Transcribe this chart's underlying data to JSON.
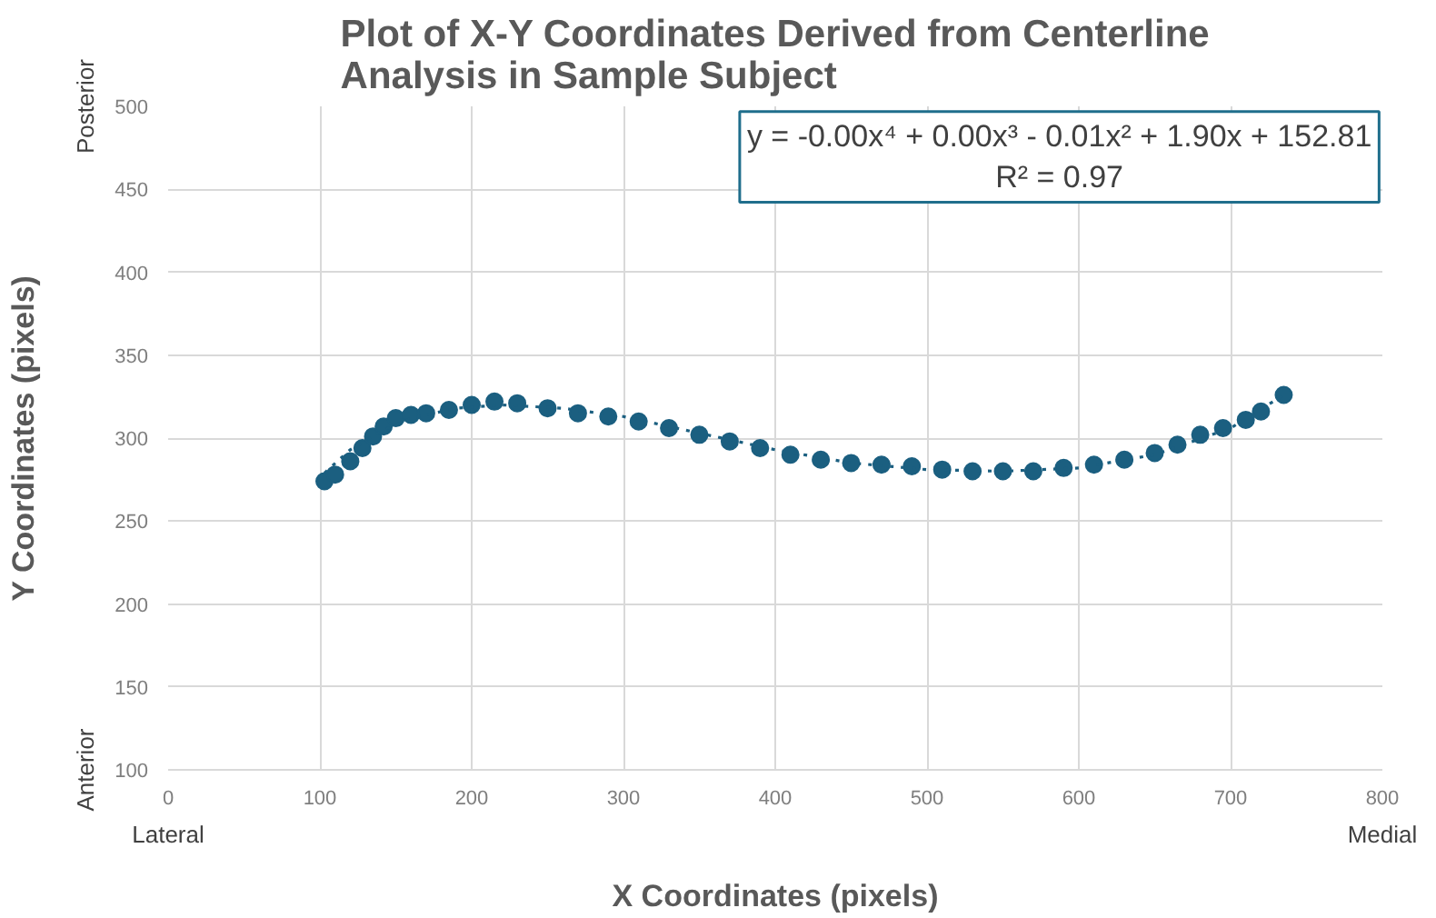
{
  "chart_data": {
    "type": "scatter",
    "title": "Plot of X-Y Coordinates Derived from Centerline Analysis in Sample Subject",
    "xlabel": "X Coordinates (pixels)",
    "ylabel": "Y Coordinates (pixels)",
    "xlim": [
      0,
      800
    ],
    "ylim": [
      100,
      500
    ],
    "xticks": [
      0,
      100,
      200,
      300,
      400,
      500,
      600,
      700,
      800
    ],
    "yticks": [
      100,
      150,
      200,
      250,
      300,
      350,
      400,
      450,
      500
    ],
    "grid": true,
    "marker": "circle",
    "annotations": [
      "Posterior",
      "Anterior",
      "Lateral",
      "Medial",
      "y = -0.00x⁴ + 0.00x³ - 0.01x² + 1.90x + 152.81",
      "R² = 0.97"
    ],
    "series": [
      {
        "color": "#1b5f80",
        "x": [
          103,
          110,
          120,
          128,
          135,
          142,
          150,
          160,
          170,
          185,
          200,
          215,
          230,
          250,
          270,
          290,
          310,
          330,
          350,
          370,
          390,
          410,
          430,
          450,
          470,
          490,
          510,
          530,
          550,
          570,
          590,
          610,
          630,
          650,
          665,
          680,
          695,
          710,
          720,
          735
        ],
        "values": [
          274,
          278,
          286,
          294,
          301,
          307,
          312,
          314,
          315,
          317,
          320,
          322,
          321,
          318,
          315,
          313,
          310,
          306,
          302,
          298,
          294,
          290,
          287,
          285,
          284,
          283,
          281,
          280,
          280,
          280,
          282,
          284,
          287,
          291,
          296,
          302,
          306,
          311,
          316,
          326
        ]
      },
      {
        "type": "line",
        "line_style": "dotted",
        "marker": "none",
        "color": "#1b5f80",
        "x": [
          103,
          120,
          140,
          160,
          190,
          220,
          260,
          300,
          350,
          400,
          450,
          500,
          550,
          600,
          650,
          700,
          735
        ],
        "values": [
          279,
          293,
          304,
          312,
          318,
          320,
          318,
          313,
          303,
          293,
          285,
          281,
          280,
          282,
          290,
          306,
          326
        ]
      }
    ]
  }
}
